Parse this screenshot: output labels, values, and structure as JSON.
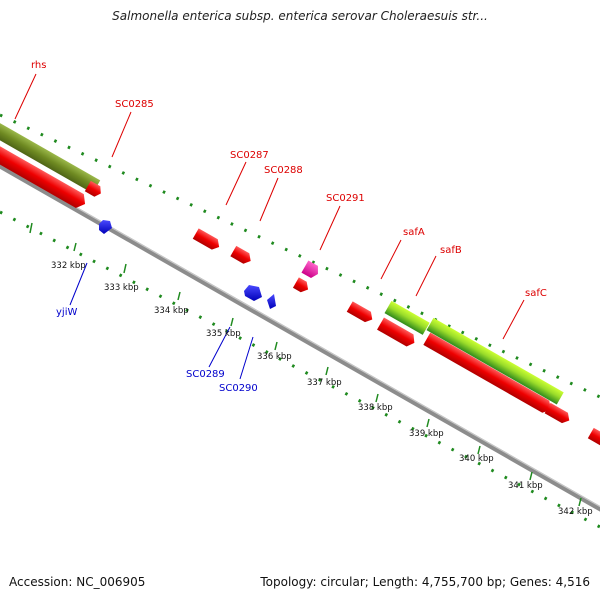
{
  "title": "Salmonella enterica subsp. enterica serovar Choleraesuis str...",
  "footer": {
    "accession": "Accession: NC_006905",
    "summary": "Topology: circular; Length: 4,755,700 bp; Genes: 4,516"
  },
  "colors": {
    "forward_cds": "#ee0000",
    "reverse_cds": "#1010dd",
    "rna": "#ee1199",
    "olive_feature": "#6f8a22",
    "green_feature": "#3c9a1f",
    "lime_feature": "#ccff33",
    "backbone": "#8a8a8a",
    "tick_dots": "#1f8a1f",
    "forward_label": "#dd0000",
    "reverse_label": "#0000cc"
  },
  "forward_labels": [
    "rhs",
    "SC0285",
    "SC0287",
    "SC0288",
    "SC0291",
    "safA",
    "safB",
    "safC"
  ],
  "reverse_labels": [
    "yjiW",
    "SC0289",
    "SC0290"
  ],
  "kbp_labels": [
    "332 kbp",
    "333 kbp",
    "334 kbp",
    "335 kbp",
    "336 kbp",
    "337 kbp",
    "338 kbp",
    "339 kbp",
    "340 kbp",
    "341 kbp",
    "342 kbp"
  ]
}
